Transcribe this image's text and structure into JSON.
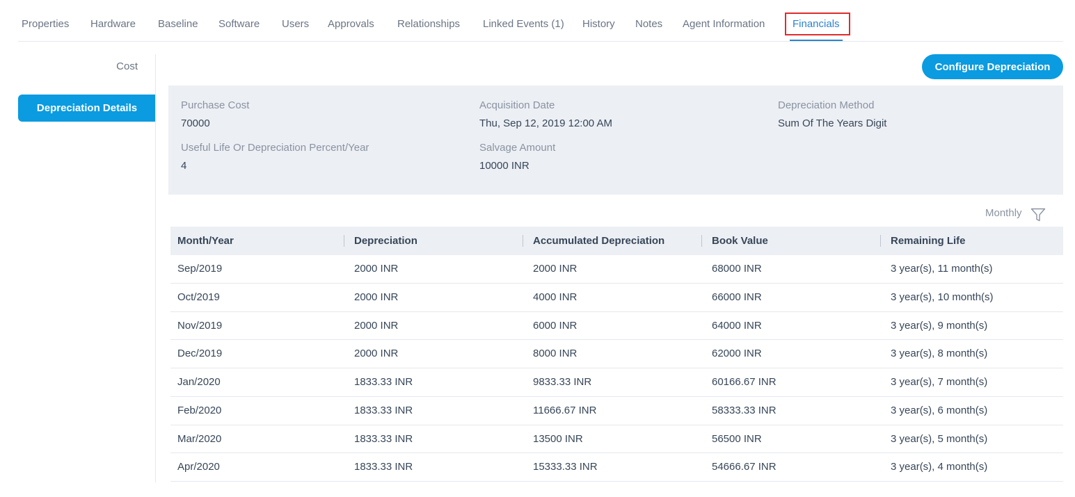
{
  "tabs": [
    {
      "label": "Properties"
    },
    {
      "label": "Hardware"
    },
    {
      "label": "Baseline"
    },
    {
      "label": "Software"
    },
    {
      "label": "Users"
    },
    {
      "label": "Approvals"
    },
    {
      "label": "Relationships"
    },
    {
      "label": "Linked Events (1)"
    },
    {
      "label": "History"
    },
    {
      "label": "Notes"
    },
    {
      "label": "Agent Information"
    },
    {
      "label": "Financials",
      "active": true
    }
  ],
  "sidenav": {
    "cost": "Cost",
    "depreciation_details": "Depreciation Details"
  },
  "actions": {
    "configure_depreciation": "Configure Depreciation"
  },
  "details": {
    "purchase_cost": {
      "label": "Purchase Cost",
      "value": "70000"
    },
    "acquisition_date": {
      "label": "Acquisition Date",
      "value": "Thu, Sep 12, 2019 12:00 AM"
    },
    "depreciation_method": {
      "label": "Depreciation Method",
      "value": "Sum Of The Years Digit"
    },
    "useful_life": {
      "label": "Useful Life Or Depreciation Percent/Year",
      "value": "4"
    },
    "salvage_amount": {
      "label": "Salvage Amount",
      "value": "10000 INR"
    }
  },
  "filter": {
    "period": "Monthly",
    "icon": "filter-icon"
  },
  "table": {
    "columns": [
      "Month/Year",
      "Depreciation",
      "Accumulated Depreciation",
      "Book Value",
      "Remaining Life"
    ],
    "rows": [
      [
        "Sep/2019",
        "2000 INR",
        "2000 INR",
        "68000 INR",
        "3 year(s), 11 month(s)"
      ],
      [
        "Oct/2019",
        "2000 INR",
        "4000 INR",
        "66000 INR",
        "3 year(s), 10 month(s)"
      ],
      [
        "Nov/2019",
        "2000 INR",
        "6000 INR",
        "64000 INR",
        "3 year(s), 9 month(s)"
      ],
      [
        "Dec/2019",
        "2000 INR",
        "8000 INR",
        "62000 INR",
        "3 year(s), 8 month(s)"
      ],
      [
        "Jan/2020",
        "1833.33 INR",
        "9833.33 INR",
        "60166.67 INR",
        "3 year(s), 7 month(s)"
      ],
      [
        "Feb/2020",
        "1833.33 INR",
        "11666.67 INR",
        "58333.33 INR",
        "3 year(s), 6 month(s)"
      ],
      [
        "Mar/2020",
        "1833.33 INR",
        "13500 INR",
        "56500 INR",
        "3 year(s), 5 month(s)"
      ],
      [
        "Apr/2020",
        "1833.33 INR",
        "15333.33 INR",
        "54666.67 INR",
        "3 year(s), 4 month(s)"
      ]
    ]
  },
  "colors": {
    "accent": "#0b9be0",
    "active_tab": "#2a84cc",
    "highlight_box": "#e02b2b",
    "panel_bg": "#eceff4"
  }
}
